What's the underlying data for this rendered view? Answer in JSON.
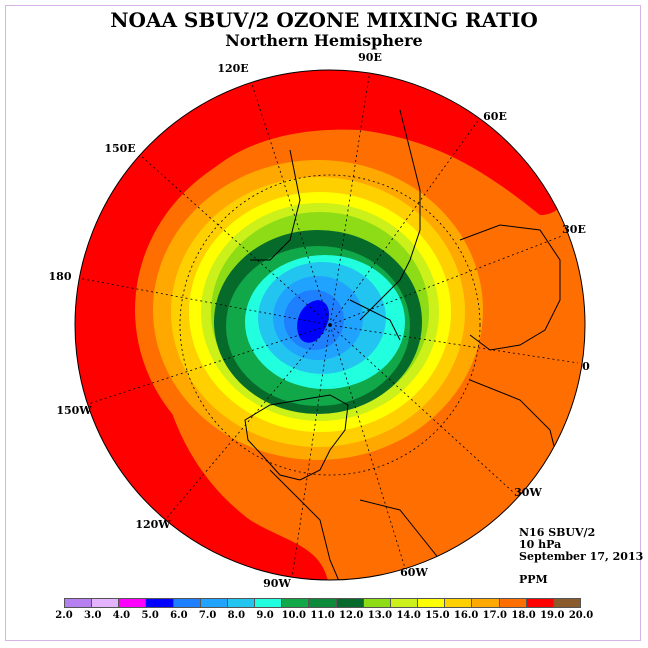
{
  "title": "NOAA SBUV/2 OZONE MIXING RATIO",
  "subtitle": "Northern Hemisphere",
  "longitude_labels": [
    "90E",
    "60E",
    "30E",
    "0",
    "30W",
    "60W",
    "90W",
    "120W",
    "150W",
    "180",
    "150E",
    "120E"
  ],
  "info": {
    "satellite": "N16 SBUV/2",
    "level": "10 hPa",
    "date": "September 17, 2013",
    "units": "PPM"
  },
  "legend": {
    "ticks": [
      "2.0",
      "3.0",
      "4.0",
      "5.0",
      "6.0",
      "7.0",
      "8.0",
      "9.0",
      "10.0",
      "11.0",
      "12.0",
      "13.0",
      "14.0",
      "15.0",
      "16.0",
      "17.0",
      "18.0",
      "19.0",
      "20.0"
    ],
    "colors": [
      "#b57ff0",
      "#e3b3ff",
      "#ff00ff",
      "#0000ff",
      "#1e7fff",
      "#1fa3ff",
      "#22c5ef",
      "#22ffdf",
      "#11a84a",
      "#0b8a3a",
      "#066b2a",
      "#8ddc16",
      "#ccf01a",
      "#ffff00",
      "#ffd000",
      "#ffa800",
      "#ff6e00",
      "#ff0000",
      "#8b5a2b"
    ]
  }
}
